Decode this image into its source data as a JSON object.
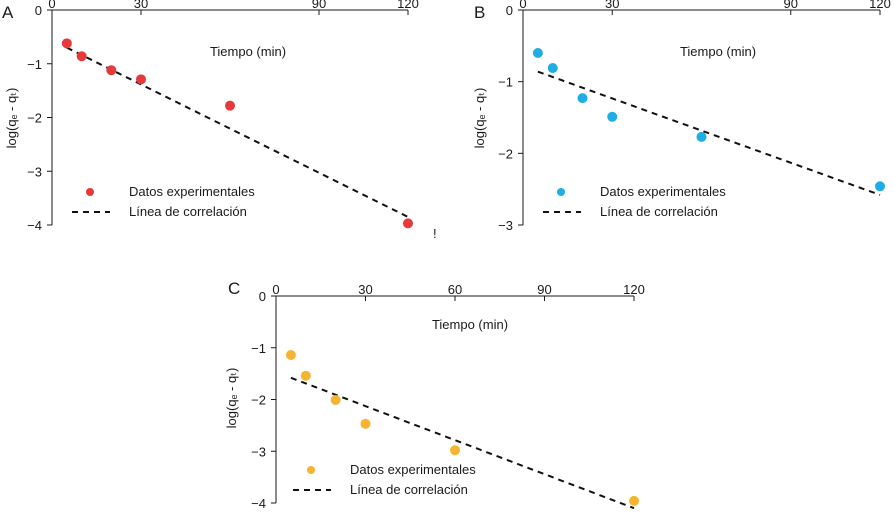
{
  "chart_data": [
    {
      "panel": "A",
      "type": "scatter",
      "xlabel": "Tiempo (min)",
      "ylabel": "log(qₑ - qₜ)",
      "xlim": [
        0,
        120
      ],
      "ylim": [
        -4,
        0
      ],
      "xticks": [
        0,
        30,
        90,
        120
      ],
      "yticks": [
        0,
        -1,
        -2,
        -3,
        -4
      ],
      "x_axis_position": "top",
      "grid": false,
      "legend_position": "bottom-left",
      "point_color": "#e8393a",
      "series": [
        {
          "name": "Datos experimentales",
          "kind": "points",
          "x": [
            5,
            10,
            20,
            30,
            60,
            120
          ],
          "y": [
            -0.62,
            -0.86,
            -1.12,
            -1.29,
            -1.78,
            -3.97
          ]
        },
        {
          "name": "Línea de correlación",
          "kind": "dashed-line",
          "x": [
            5,
            120
          ],
          "y": [
            -0.7,
            -3.85
          ]
        }
      ],
      "annotation": "!"
    },
    {
      "panel": "B",
      "type": "scatter",
      "xlabel": "Tiempo (min)",
      "ylabel": "log(qₑ - qₜ)",
      "xlim": [
        0,
        120
      ],
      "ylim": [
        -3,
        0
      ],
      "xticks": [
        0,
        30,
        90,
        120
      ],
      "yticks": [
        0,
        -1,
        -2,
        -3
      ],
      "x_axis_position": "top",
      "grid": false,
      "legend_position": "bottom-left",
      "point_color": "#1fade3",
      "series": [
        {
          "name": "Datos experimentales",
          "kind": "points",
          "x": [
            5,
            10,
            20,
            30,
            60,
            120
          ],
          "y": [
            -0.6,
            -0.81,
            -1.23,
            -1.49,
            -1.77,
            -2.46
          ]
        },
        {
          "name": "Línea de correlación",
          "kind": "dashed-line",
          "x": [
            5,
            120
          ],
          "y": [
            -0.86,
            -2.58
          ]
        }
      ]
    },
    {
      "panel": "C",
      "type": "scatter",
      "xlabel": "Tiempo (min)",
      "ylabel": "log(qₑ - qₜ)",
      "xlim": [
        0,
        120
      ],
      "ylim": [
        -4,
        0
      ],
      "xticks": [
        0,
        30,
        60,
        90,
        120
      ],
      "yticks": [
        0,
        -1,
        -2,
        -3,
        -4
      ],
      "x_axis_position": "top",
      "grid": false,
      "legend_position": "bottom-left",
      "point_color": "#f7b430",
      "series": [
        {
          "name": "Datos experimentales",
          "kind": "points",
          "x": [
            5,
            10,
            20,
            30,
            60,
            120
          ],
          "y": [
            -1.14,
            -1.54,
            -2.01,
            -2.47,
            -2.98,
            -3.96
          ]
        },
        {
          "name": "Línea de correlación",
          "kind": "dashed-line",
          "x": [
            5,
            120
          ],
          "y": [
            -1.58,
            -4.1
          ]
        }
      ]
    }
  ]
}
